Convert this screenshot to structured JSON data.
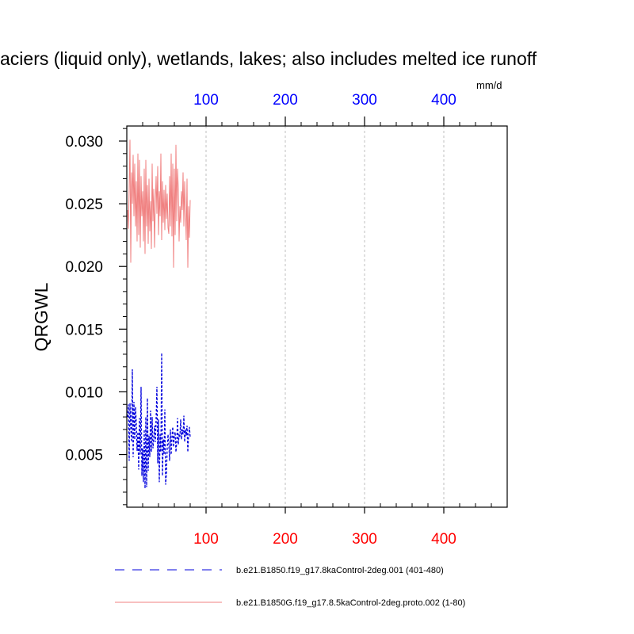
{
  "chart_data": {
    "type": "line",
    "title": "aciers (liquid only), wetlands, lakes; also includes melted ice runoff",
    "ylabel": "QRGWL",
    "top_axis_unit": "mm/d",
    "xlim": [
      0,
      480
    ],
    "ylim": [
      0.0008,
      0.0312
    ],
    "y_ticks": [
      0.005,
      0.01,
      0.015,
      0.02,
      0.025,
      0.03
    ],
    "y_tick_labels": [
      "0.005",
      "0.010",
      "0.015",
      "0.020",
      "0.025",
      "0.030"
    ],
    "y_minor_step": 0.001,
    "x_ticks": [
      100,
      200,
      300,
      400
    ],
    "x_bottom_tick_labels": [
      "100",
      "200",
      "300",
      "400"
    ],
    "x_top_tick_labels": [
      "100",
      "200",
      "300",
      "400"
    ],
    "x_minor_step": 20,
    "grid": "vertical dashed at major x ticks",
    "legend_placement": "bottom",
    "colors": {
      "bottom_axis_labels": "#ff0000",
      "top_axis_labels": "#0000ff",
      "series_red": "#f08080",
      "series_blue": "#0000dd"
    },
    "series": [
      {
        "name": "b.e21.B1850.f19_g17.8kaControl-2deg.001 (401-480)",
        "color": "#0000dd",
        "style": "dashed",
        "x_start": 1,
        "values": [
          0.008,
          0.009,
          0.0045,
          0.0091,
          0.0072,
          0.006,
          0.0118,
          0.0048,
          0.0092,
          0.0062,
          0.0088,
          0.0075,
          0.0053,
          0.0068,
          0.0038,
          0.0079,
          0.005,
          0.0104,
          0.0033,
          0.0055,
          0.0028,
          0.007,
          0.0023,
          0.008,
          0.0024,
          0.0095,
          0.0037,
          0.0065,
          0.0048,
          0.0085,
          0.0052,
          0.008,
          0.0055,
          0.0062,
          0.0073,
          0.006,
          0.0078,
          0.0104,
          0.0043,
          0.0078,
          0.0028,
          0.0066,
          0.0052,
          0.0131,
          0.0033,
          0.0062,
          0.005,
          0.0086,
          0.0026,
          0.0035,
          0.0055,
          0.0066,
          0.0058,
          0.0045,
          0.007,
          0.005,
          0.0064,
          0.0072,
          0.0056,
          0.0065,
          0.0068,
          0.0052,
          0.006,
          0.0079,
          0.0058,
          0.0066,
          0.0064,
          0.0078,
          0.0062,
          0.007,
          0.0066,
          0.0081,
          0.006,
          0.007,
          0.0065,
          0.0073,
          0.0052,
          0.0066,
          0.0072,
          0.0064
        ]
      },
      {
        "name": "b.e21.B1850G.f19_g17.8.5kaControl-2deg.proto.002 (1-80)",
        "color": "#f08080",
        "style": "solid",
        "x_start": 1,
        "values": [
          0.0245,
          0.023,
          0.0262,
          0.0301,
          0.0203,
          0.0275,
          0.025,
          0.0289,
          0.024,
          0.0282,
          0.0232,
          0.0268,
          0.022,
          0.029,
          0.0225,
          0.0285,
          0.0215,
          0.0272,
          0.024,
          0.026,
          0.022,
          0.0278,
          0.021,
          0.0285,
          0.0232,
          0.0265,
          0.0218,
          0.027,
          0.0228,
          0.0252,
          0.0214,
          0.0282,
          0.0236,
          0.0262,
          0.0215,
          0.025,
          0.0272,
          0.0242,
          0.028,
          0.0225,
          0.026,
          0.024,
          0.029,
          0.0221,
          0.0268,
          0.0235,
          0.0261,
          0.0229,
          0.0265,
          0.0238,
          0.0258,
          0.0231,
          0.0226,
          0.0272,
          0.0232,
          0.029,
          0.0224,
          0.0282,
          0.0199,
          0.0278,
          0.0225,
          0.0297,
          0.0236,
          0.0278,
          0.0262,
          0.022,
          0.0248,
          0.0235,
          0.026,
          0.0245,
          0.0275,
          0.0232,
          0.0268,
          0.0245,
          0.0221,
          0.027,
          0.0199,
          0.0248,
          0.0223,
          0.0253
        ]
      }
    ]
  }
}
